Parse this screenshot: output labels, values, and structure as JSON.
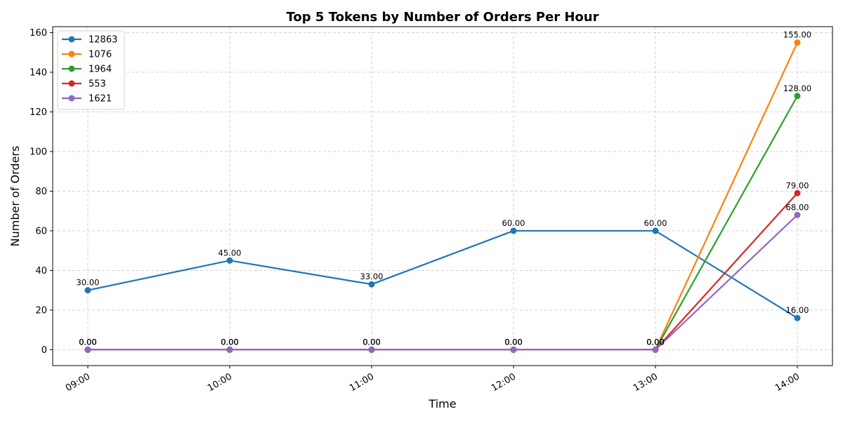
{
  "chart_data": {
    "type": "line",
    "title": "Top 5 Tokens by Number of Orders Per Hour",
    "xlabel": "Time",
    "ylabel": "Number of Orders",
    "categories": [
      "09:00",
      "10:00",
      "11:00",
      "12:00",
      "13:00",
      "14:00"
    ],
    "ylim": [
      -8,
      163
    ],
    "yticks": [
      0,
      20,
      40,
      60,
      80,
      100,
      120,
      140,
      160
    ],
    "grid": true,
    "legend_position": "top-left",
    "series": [
      {
        "name": "12863",
        "color": "#1f77b4",
        "values": [
          30,
          45,
          33,
          60,
          60,
          16
        ]
      },
      {
        "name": "1076",
        "color": "#ff7f0e",
        "values": [
          0,
          0,
          0,
          0,
          0,
          155
        ]
      },
      {
        "name": "1964",
        "color": "#2ca02c",
        "values": [
          0,
          0,
          0,
          0,
          0,
          128
        ]
      },
      {
        "name": "553",
        "color": "#d62728",
        "values": [
          0,
          0,
          0,
          0,
          0,
          79
        ]
      },
      {
        "name": "1621",
        "color": "#9467bd",
        "values": [
          0,
          0,
          0,
          0,
          0,
          68
        ]
      }
    ]
  }
}
